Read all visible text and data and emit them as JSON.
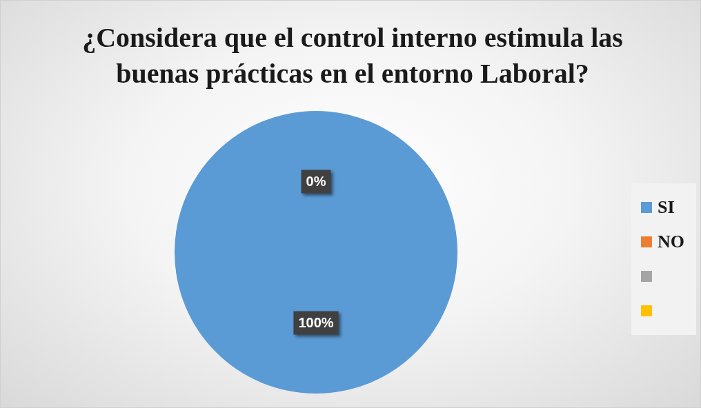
{
  "chart_data": {
    "type": "pie",
    "title": "¿Considera que el control interno estimula las buenas prácticas en el entorno Laboral?",
    "categories": [
      "SI",
      "NO",
      null,
      null
    ],
    "values": [
      100,
      0,
      0,
      0
    ],
    "colors": [
      "#5b9bd5",
      "#ed7d31",
      "#a5a5a5",
      "#ffc000"
    ],
    "value_labels": [
      "100%",
      "0%",
      null,
      null
    ],
    "legend": "right"
  }
}
